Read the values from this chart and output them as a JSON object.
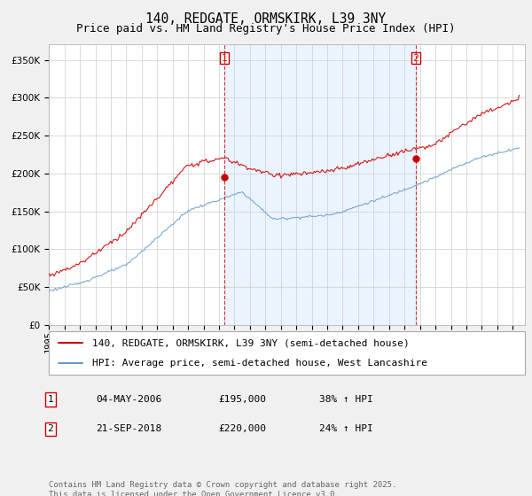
{
  "title": "140, REDGATE, ORMSKIRK, L39 3NY",
  "subtitle": "Price paid vs. HM Land Registry's House Price Index (HPI)",
  "ylim": [
    0,
    370000
  ],
  "xlim_start": 1995.0,
  "xlim_end": 2025.8,
  "red_line_color": "#cc0000",
  "blue_line_color": "#6699cc",
  "blue_fill_color": "#ddeeff",
  "vline_color": "#cc0000",
  "grid_color": "#cccccc",
  "background_color": "#f0f0f0",
  "plot_bg_color": "#ffffff",
  "marker1_x": 2006.34,
  "marker1_y": 195000,
  "marker2_x": 2018.72,
  "marker2_y": 220000,
  "legend_red": "140, REDGATE, ORMSKIRK, L39 3NY (semi-detached house)",
  "legend_blue": "HPI: Average price, semi-detached house, West Lancashire",
  "table_row1": [
    "1",
    "04-MAY-2006",
    "£195,000",
    "38% ↑ HPI"
  ],
  "table_row2": [
    "2",
    "21-SEP-2018",
    "£220,000",
    "24% ↑ HPI"
  ],
  "footnote": "Contains HM Land Registry data © Crown copyright and database right 2025.\nThis data is licensed under the Open Government Licence v3.0.",
  "title_fontsize": 10.5,
  "subtitle_fontsize": 9,
  "tick_fontsize": 7.5,
  "legend_fontsize": 8,
  "table_fontsize": 8,
  "footnote_fontsize": 6.5
}
